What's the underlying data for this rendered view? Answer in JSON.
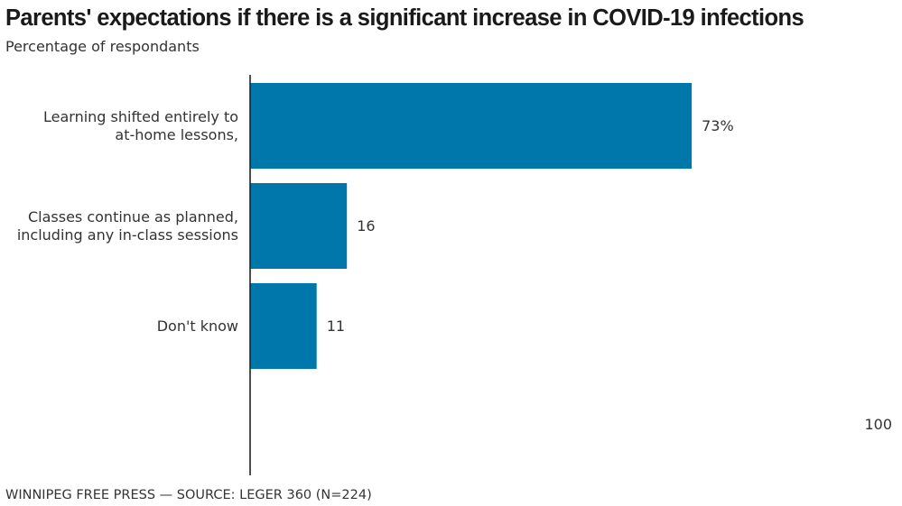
{
  "header": {
    "title": "Parents' expectations if there is a significant increase in COVID-19 infections",
    "subtitle": "Percentage of respondants"
  },
  "footer": {
    "credit": "WINNIPEG FREE PRESS — SOURCE: LEGER 360 (N=224)"
  },
  "colors": {
    "bar": "#0077ab",
    "axis": "#222222",
    "text": "#333333"
  },
  "chart_data": {
    "type": "bar",
    "orientation": "horizontal",
    "title": "Parents' expectations if there is a significant increase in COVID-19 infections",
    "subtitle": "Percentage of respondants",
    "xlabel": "",
    "ylabel": "",
    "xlim": [
      0,
      100
    ],
    "x_ticks": [
      "100"
    ],
    "grid": false,
    "legend": "none",
    "categories": [
      [
        "Learning shifted entirely to",
        "at-home lessons,"
      ],
      [
        "Classes continue as planned,",
        "including any in-class sessions"
      ],
      [
        "Don't know"
      ]
    ],
    "values": [
      73,
      16,
      11
    ],
    "data_labels": [
      "73%",
      "16",
      "11"
    ],
    "source": "WINNIPEG FREE PRESS — SOURCE: LEGER 360 (N=224)"
  }
}
